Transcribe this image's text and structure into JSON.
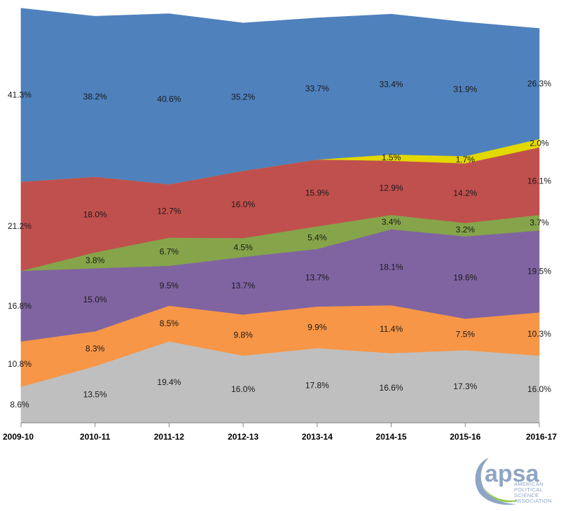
{
  "chart_data": {
    "type": "area",
    "stacked": true,
    "categories": [
      "2009-10",
      "2010-11",
      "2011-12",
      "2012-13",
      "2013-14",
      "2014-15",
      "2015-16",
      "2016-17"
    ],
    "ylim": [
      0,
      100
    ],
    "grid": false,
    "legend": "none",
    "series": [
      {
        "color": "#bfbfbf",
        "values": [
          8.6,
          13.5,
          19.4,
          16.0,
          17.8,
          16.6,
          17.3,
          16.0
        ],
        "labels": [
          "8.6%",
          "13.5%",
          "19.4%",
          "16.0%",
          "17.8%",
          "16.6%",
          "17.3%",
          "16.0%"
        ]
      },
      {
        "color": "#f79646",
        "values": [
          10.8,
          8.3,
          8.5,
          9.8,
          9.9,
          11.4,
          7.5,
          10.3
        ],
        "labels": [
          "10.8%",
          "8.3%",
          "8.5%",
          "9.8%",
          "9.9%",
          "11.4%",
          "7.5%",
          "10.3%"
        ]
      },
      {
        "color": "#8064a2",
        "values": [
          16.8,
          15.0,
          9.5,
          13.7,
          13.7,
          18.1,
          19.6,
          19.5
        ],
        "labels": [
          "16.8%",
          "15.0%",
          "9.5%",
          "13.7%",
          "13.7%",
          "18.1%",
          "19.6%",
          "19.5%"
        ]
      },
      {
        "color": "#86a44a",
        "values": [
          0,
          3.8,
          6.7,
          4.5,
          5.4,
          3.4,
          3.2,
          3.7
        ],
        "labels": [
          "",
          "3.8%",
          "6.7%",
          "4.5%",
          "5.4%",
          "3.4%",
          "3.2%",
          "3.7%"
        ]
      },
      {
        "color": "#c0504d",
        "values": [
          21.2,
          18.0,
          12.7,
          16.0,
          15.9,
          12.9,
          14.2,
          16.1
        ],
        "labels": [
          "21.2%",
          "18.0%",
          "12.7%",
          "16.0%",
          "15.9%",
          "12.9%",
          "14.2%",
          "16.1%"
        ]
      },
      {
        "color": "#e3d800",
        "values": [
          0,
          0,
          0,
          0,
          0,
          1.5,
          1.7,
          2.0
        ],
        "labels": [
          "",
          "",
          "",
          "",
          "",
          "1.5%",
          "1.7%",
          "2.0%"
        ]
      },
      {
        "color": "#4f81bd",
        "values": [
          41.3,
          38.2,
          40.6,
          35.2,
          33.7,
          33.4,
          31.9,
          26.3
        ],
        "labels": [
          "41.3%",
          "38.2%",
          "40.6%",
          "35.2%",
          "33.7%",
          "33.4%",
          "31.9%",
          "26.3%"
        ]
      }
    ]
  },
  "logo": {
    "word": "apsa",
    "line1": "AMERICAN",
    "line2": "POLITICAL",
    "line3": "SCIENCE",
    "line4": "ASSOCIATION",
    "color": "#8fa5c7",
    "accent": "#8ec63f"
  }
}
